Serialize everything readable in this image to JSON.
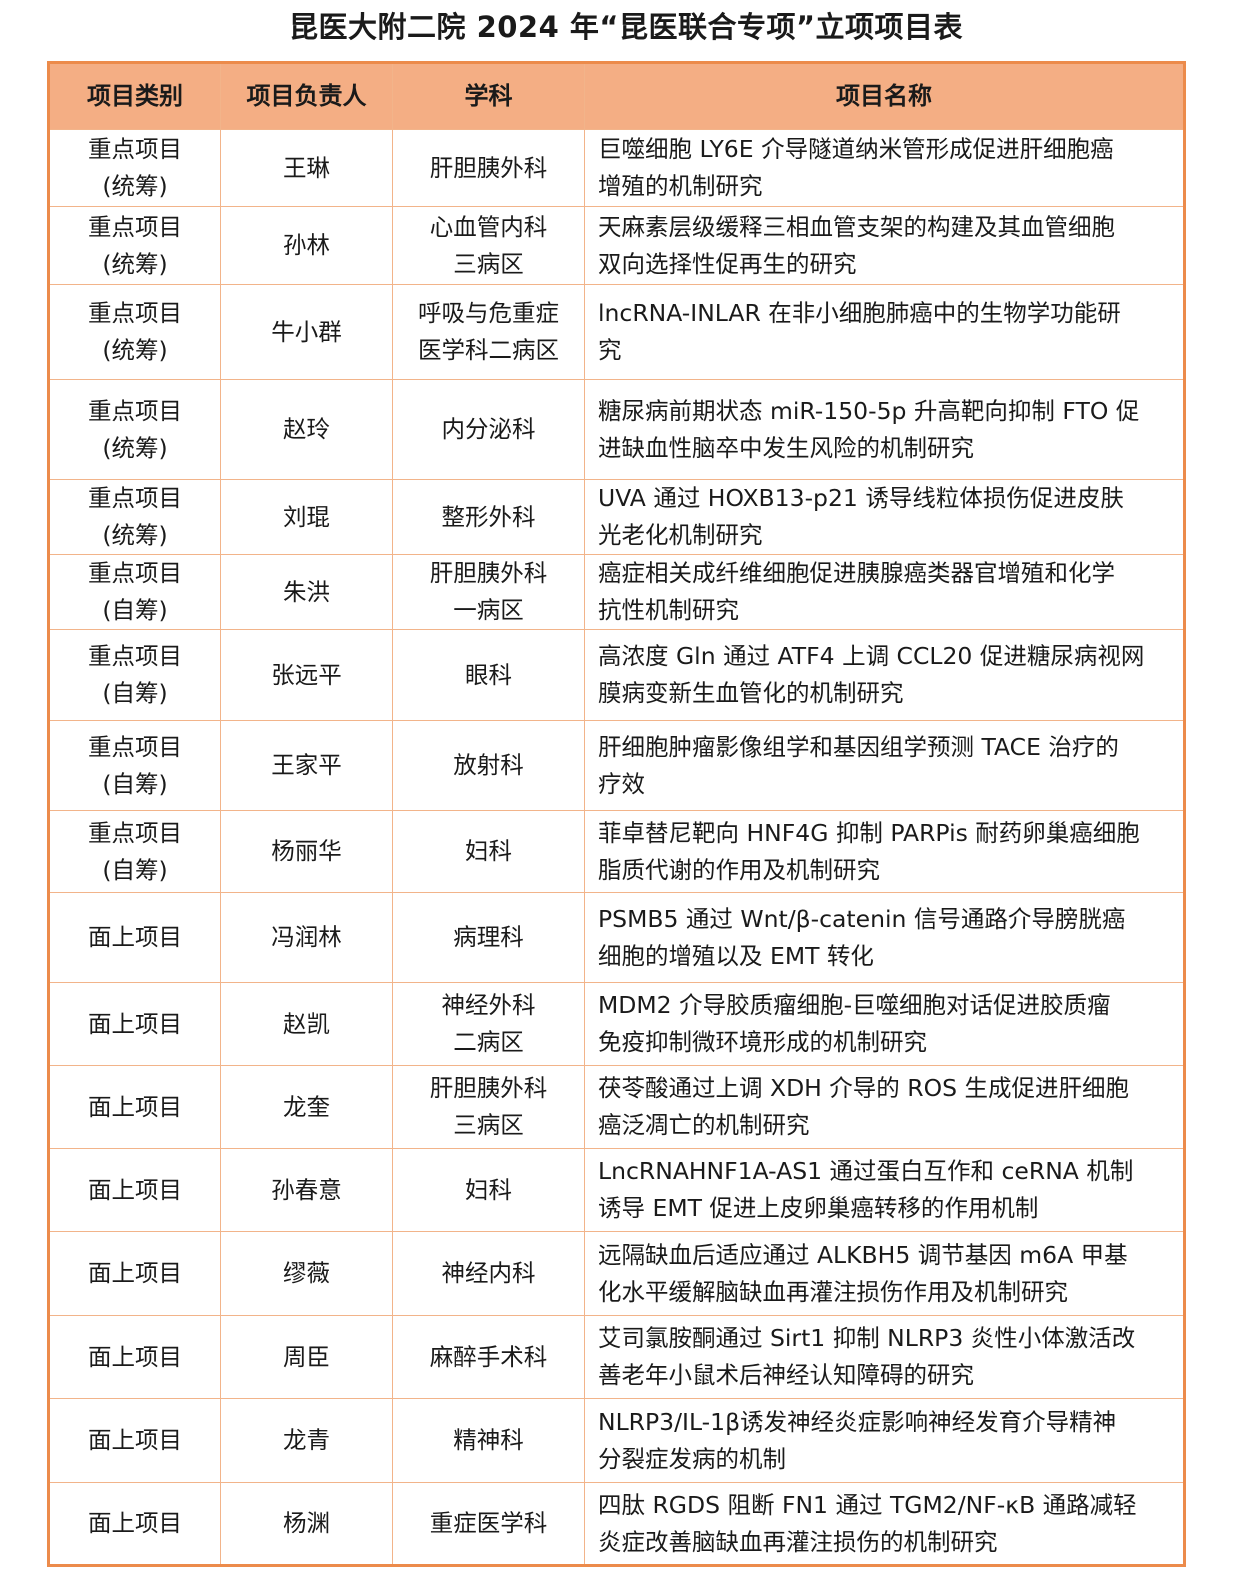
{
  "title": "昆医大附二院 2024 年“昆医联合专项”立项项目表",
  "table": {
    "header_color": "#f4ae84",
    "border_color": "#ec8b4b",
    "headers": [
      "项目类别",
      "项目负责人",
      "学科",
      "项目名称"
    ],
    "rows": [
      {
        "category": "重点项目\n(统筹)",
        "leader": "王琳",
        "dept": "肝胆胰外科",
        "name": "巨噬细胞 LY6E 介导隧道纳米管形成促进肝细胞癌\n增殖的机制研究"
      },
      {
        "category": "重点项目\n(统筹)",
        "leader": "孙林",
        "dept": "心血管内科\n三病区",
        "name": "天麻素层级缓释三相血管支架的构建及其血管细胞\n双向选择性促再生的研究"
      },
      {
        "category": "重点项目\n(统筹)",
        "leader": "牛小群",
        "dept": "呼吸与危重症\n医学科二病区",
        "name": "lncRNA-INLAR 在非小细胞肺癌中的生物学功能研\n究"
      },
      {
        "category": "重点项目\n(统筹)",
        "leader": "赵玲",
        "dept": "内分泌科",
        "name": "糖尿病前期状态 miR-150-5p 升高靶向抑制 FTO 促\n进缺血性脑卒中发生风险的机制研究"
      },
      {
        "category": "重点项目\n(统筹)",
        "leader": "刘琨",
        "dept": "整形外科",
        "name": "UVA 通过 HOXB13-p21 诱导线粒体损伤促进皮肤\n光老化机制研究"
      },
      {
        "category": "重点项目\n(自筹)",
        "leader": "朱洪",
        "dept": "肝胆胰外科\n一病区",
        "name": "癌症相关成纤维细胞促进胰腺癌类器官增殖和化学\n抗性机制研究"
      },
      {
        "category": "重点项目\n(自筹)",
        "leader": "张远平",
        "dept": "眼科",
        "name": "高浓度 Gln 通过 ATF4 上调 CCL20 促进糖尿病视网\n膜病变新生血管化的机制研究"
      },
      {
        "category": "重点项目\n(自筹)",
        "leader": "王家平",
        "dept": "放射科",
        "name": "肝细胞肿瘤影像组学和基因组学预测 TACE 治疗的\n疗效"
      },
      {
        "category": "重点项目\n(自筹)",
        "leader": "杨丽华",
        "dept": "妇科",
        "name": "菲卓替尼靶向 HNF4G 抑制 PARPis 耐药卵巢癌细胞\n脂质代谢的作用及机制研究"
      },
      {
        "category": "面上项目",
        "leader": "冯润林",
        "dept": "病理科",
        "name": "PSMB5 通过 Wnt/β-catenin 信号通路介导膀胱癌\n细胞的增殖以及 EMT 转化"
      },
      {
        "category": "面上项目",
        "leader": "赵凯",
        "dept": "神经外科\n二病区",
        "name": "MDM2 介导胶质瘤细胞-巨噬细胞对话促进胶质瘤\n免疫抑制微环境形成的机制研究"
      },
      {
        "category": "面上项目",
        "leader": "龙奎",
        "dept": "肝胆胰外科\n三病区",
        "name": "茯苓酸通过上调 XDH 介导的 ROS 生成促进肝细胞\n癌泛凋亡的机制研究"
      },
      {
        "category": "面上项目",
        "leader": "孙春意",
        "dept": "妇科",
        "name": "LncRNAHNF1A-AS1 通过蛋白互作和 ceRNA 机制\n诱导 EMT 促进上皮卵巢癌转移的作用机制"
      },
      {
        "category": "面上项目",
        "leader": "缪薇",
        "dept": "神经内科",
        "name": "远隔缺血后适应通过 ALKBH5 调节基因 m6A 甲基\n化水平缓解脑缺血再灌注损伤作用及机制研究"
      },
      {
        "category": "面上项目",
        "leader": "周臣",
        "dept": "麻醉手术科",
        "name": "艾司氯胺酮通过 Sirt1 抑制 NLRP3 炎性小体激活改\n善老年小鼠术后神经认知障碍的研究"
      },
      {
        "category": "面上项目",
        "leader": "龙青",
        "dept": "精神科",
        "name": "NLRP3/IL-1β诱发神经炎症影响神经发育介导精神\n分裂症发病的机制"
      },
      {
        "category": "面上项目",
        "leader": "杨渊",
        "dept": "重症医学科",
        "name": "四肽 RGDS 阻断 FN1 通过 TGM2/NF-κB 通路减轻\n炎症改善脑缺血再灌注损伤的机制研究"
      }
    ]
  }
}
